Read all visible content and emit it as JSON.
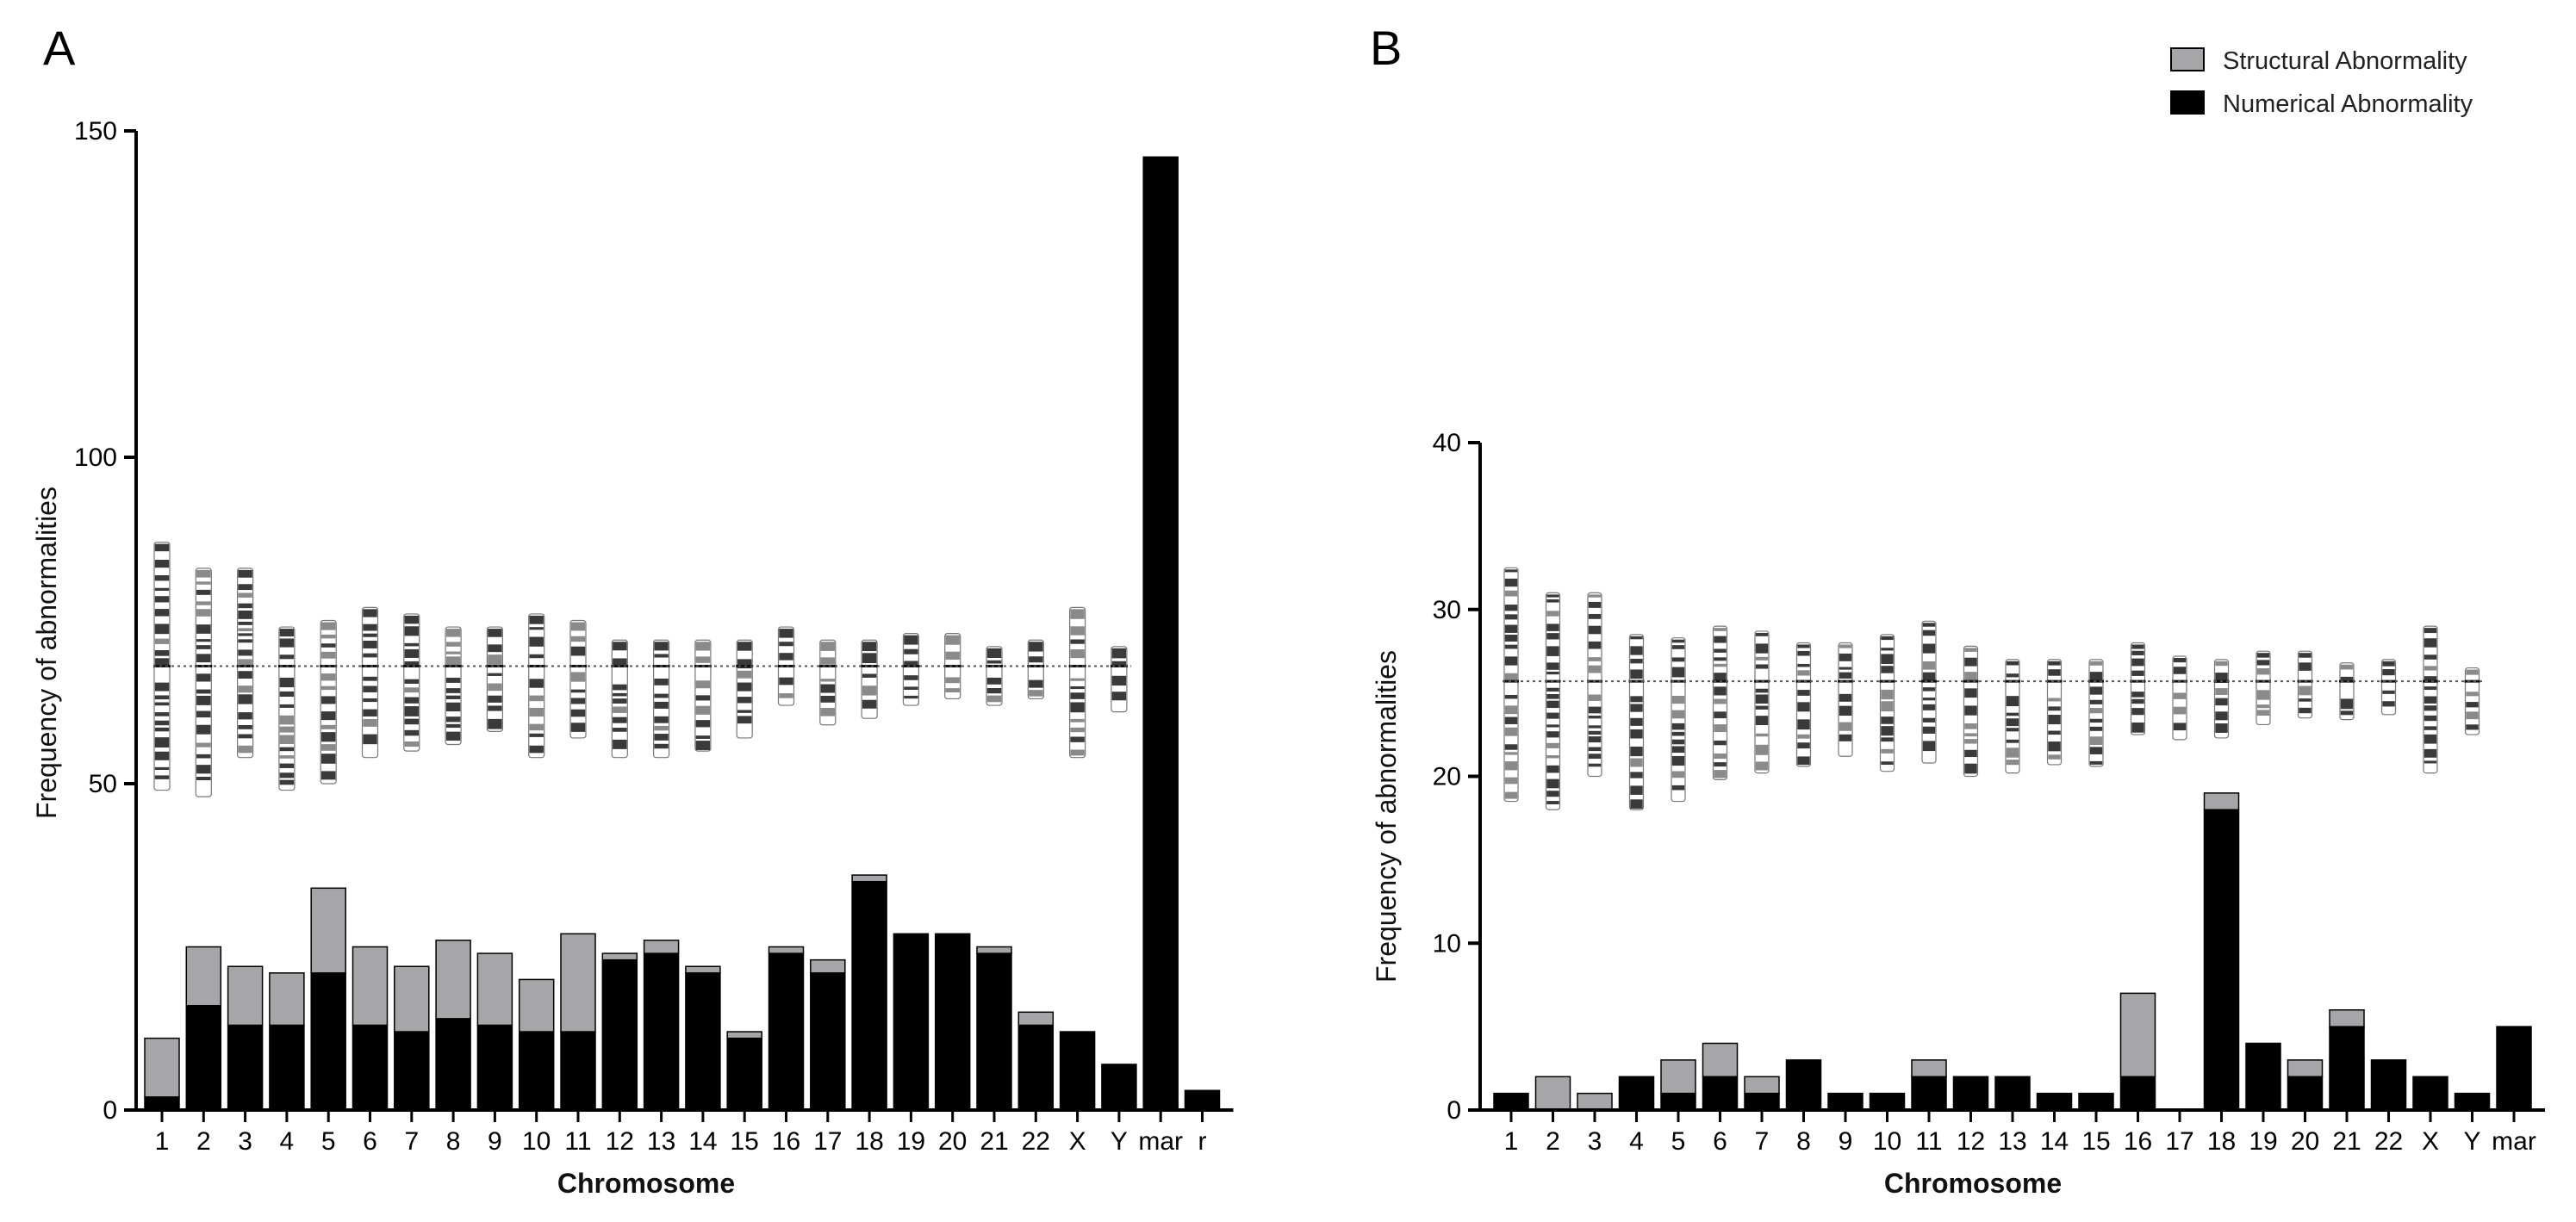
{
  "colors": {
    "structural": "#a6a6a8",
    "numerical": "#000000",
    "band_dark": "#3a3a3a",
    "band_mid": "#8a8a8a"
  },
  "legend": [
    {
      "label": "Structural Abnormality",
      "color": "#a6a6a8"
    },
    {
      "label": "Numerical Abnormality",
      "color": "#000000"
    }
  ],
  "chart_data": [
    {
      "panel": "A",
      "type": "bar",
      "stacked": true,
      "ylabel": "Frequency of abnormalities",
      "xlabel": "Chromosome",
      "ylim": [
        0,
        150
      ],
      "yticks": [
        0,
        50,
        100,
        150
      ],
      "ideogram_centromere_y": 68,
      "categories": [
        "1",
        "2",
        "3",
        "4",
        "5",
        "6",
        "7",
        "8",
        "9",
        "10",
        "11",
        "12",
        "13",
        "14",
        "15",
        "16",
        "17",
        "18",
        "19",
        "20",
        "21",
        "22",
        "X",
        "Y",
        "mar",
        "r"
      ],
      "series": [
        {
          "name": "Numerical Abnormality",
          "values": [
            2,
            16,
            13,
            13,
            21,
            13,
            12,
            14,
            13,
            12,
            12,
            23,
            24,
            21,
            11,
            24,
            21,
            35,
            27,
            27,
            24,
            13,
            12,
            7,
            146,
            3
          ]
        },
        {
          "name": "Structural Abnormality",
          "values": [
            9,
            9,
            9,
            8,
            13,
            12,
            10,
            12,
            11,
            8,
            15,
            1,
            2,
            1,
            1,
            1,
            2,
            1,
            0,
            0,
            1,
            2,
            0,
            0,
            0,
            0
          ]
        }
      ]
    },
    {
      "panel": "B",
      "type": "bar",
      "stacked": true,
      "ylabel": "Frequency of abnormalities",
      "xlabel": "Chromosome",
      "ylim": [
        0,
        40
      ],
      "yticks": [
        0,
        10,
        20,
        30,
        40
      ],
      "ideogram_centromere_y": 25.7,
      "categories": [
        "1",
        "2",
        "3",
        "4",
        "5",
        "6",
        "7",
        "8",
        "9",
        "10",
        "11",
        "12",
        "13",
        "14",
        "15",
        "16",
        "17",
        "18",
        "19",
        "20",
        "21",
        "22",
        "X",
        "Y",
        "mar"
      ],
      "series": [
        {
          "name": "Numerical Abnormality",
          "values": [
            1,
            0,
            0,
            2,
            1,
            2,
            1,
            3,
            1,
            1,
            2,
            2,
            2,
            1,
            1,
            2,
            0,
            18,
            4,
            2,
            5,
            3,
            2,
            1,
            5
          ]
        },
        {
          "name": "Structural Abnormality",
          "values": [
            0,
            2,
            1,
            0,
            2,
            2,
            1,
            0,
            0,
            0,
            1,
            0,
            0,
            0,
            0,
            5,
            0,
            1,
            0,
            1,
            1,
            0,
            0,
            0,
            0
          ]
        }
      ]
    }
  ]
}
